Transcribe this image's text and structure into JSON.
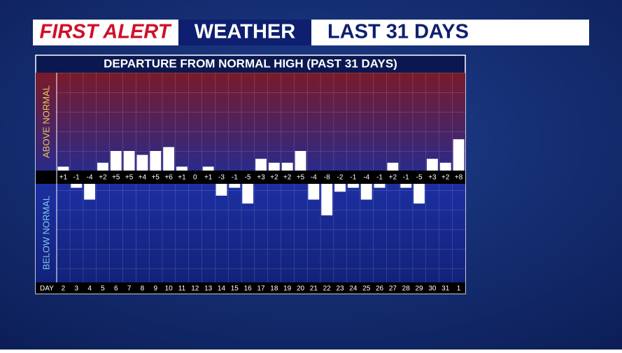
{
  "header": {
    "brand": "FIRST ALERT",
    "section": "WEATHER",
    "subtitle": "LAST 31 DAYS"
  },
  "chart_data": {
    "type": "bar",
    "title": "DEPARTURE FROM NORMAL HIGH (PAST 31 DAYS)",
    "x_label": "DAY",
    "above_label": "ABOVE NORMAL",
    "below_label": "BELOW NORMAL",
    "categories": [
      "2",
      "3",
      "4",
      "5",
      "6",
      "7",
      "8",
      "9",
      "10",
      "11",
      "12",
      "13",
      "14",
      "15",
      "16",
      "17",
      "18",
      "19",
      "20",
      "21",
      "22",
      "23",
      "24",
      "25",
      "26",
      "27",
      "28",
      "29",
      "30",
      "31",
      "1"
    ],
    "values": [
      1,
      -1,
      -4,
      2,
      5,
      5,
      4,
      5,
      6,
      1,
      0,
      1,
      -3,
      -1,
      -5,
      3,
      2,
      2,
      5,
      -4,
      -8,
      -2,
      -1,
      -4,
      -1,
      2,
      -1,
      -5,
      3,
      2,
      8
    ],
    "value_labels": [
      "+1",
      "-1",
      "-4",
      "+2",
      "+5",
      "+5",
      "+4",
      "+5",
      "+6",
      "+1",
      "0",
      "+1",
      "-3",
      "-1",
      "-5",
      "+3",
      "+2",
      "+2",
      "+5",
      "-4",
      "-8",
      "-2",
      "-1",
      "-4",
      "-1",
      "+2",
      "-1",
      "-5",
      "+3",
      "+2",
      "+8"
    ],
    "color": "#ffffff",
    "ylim": [
      -25,
      25
    ]
  }
}
